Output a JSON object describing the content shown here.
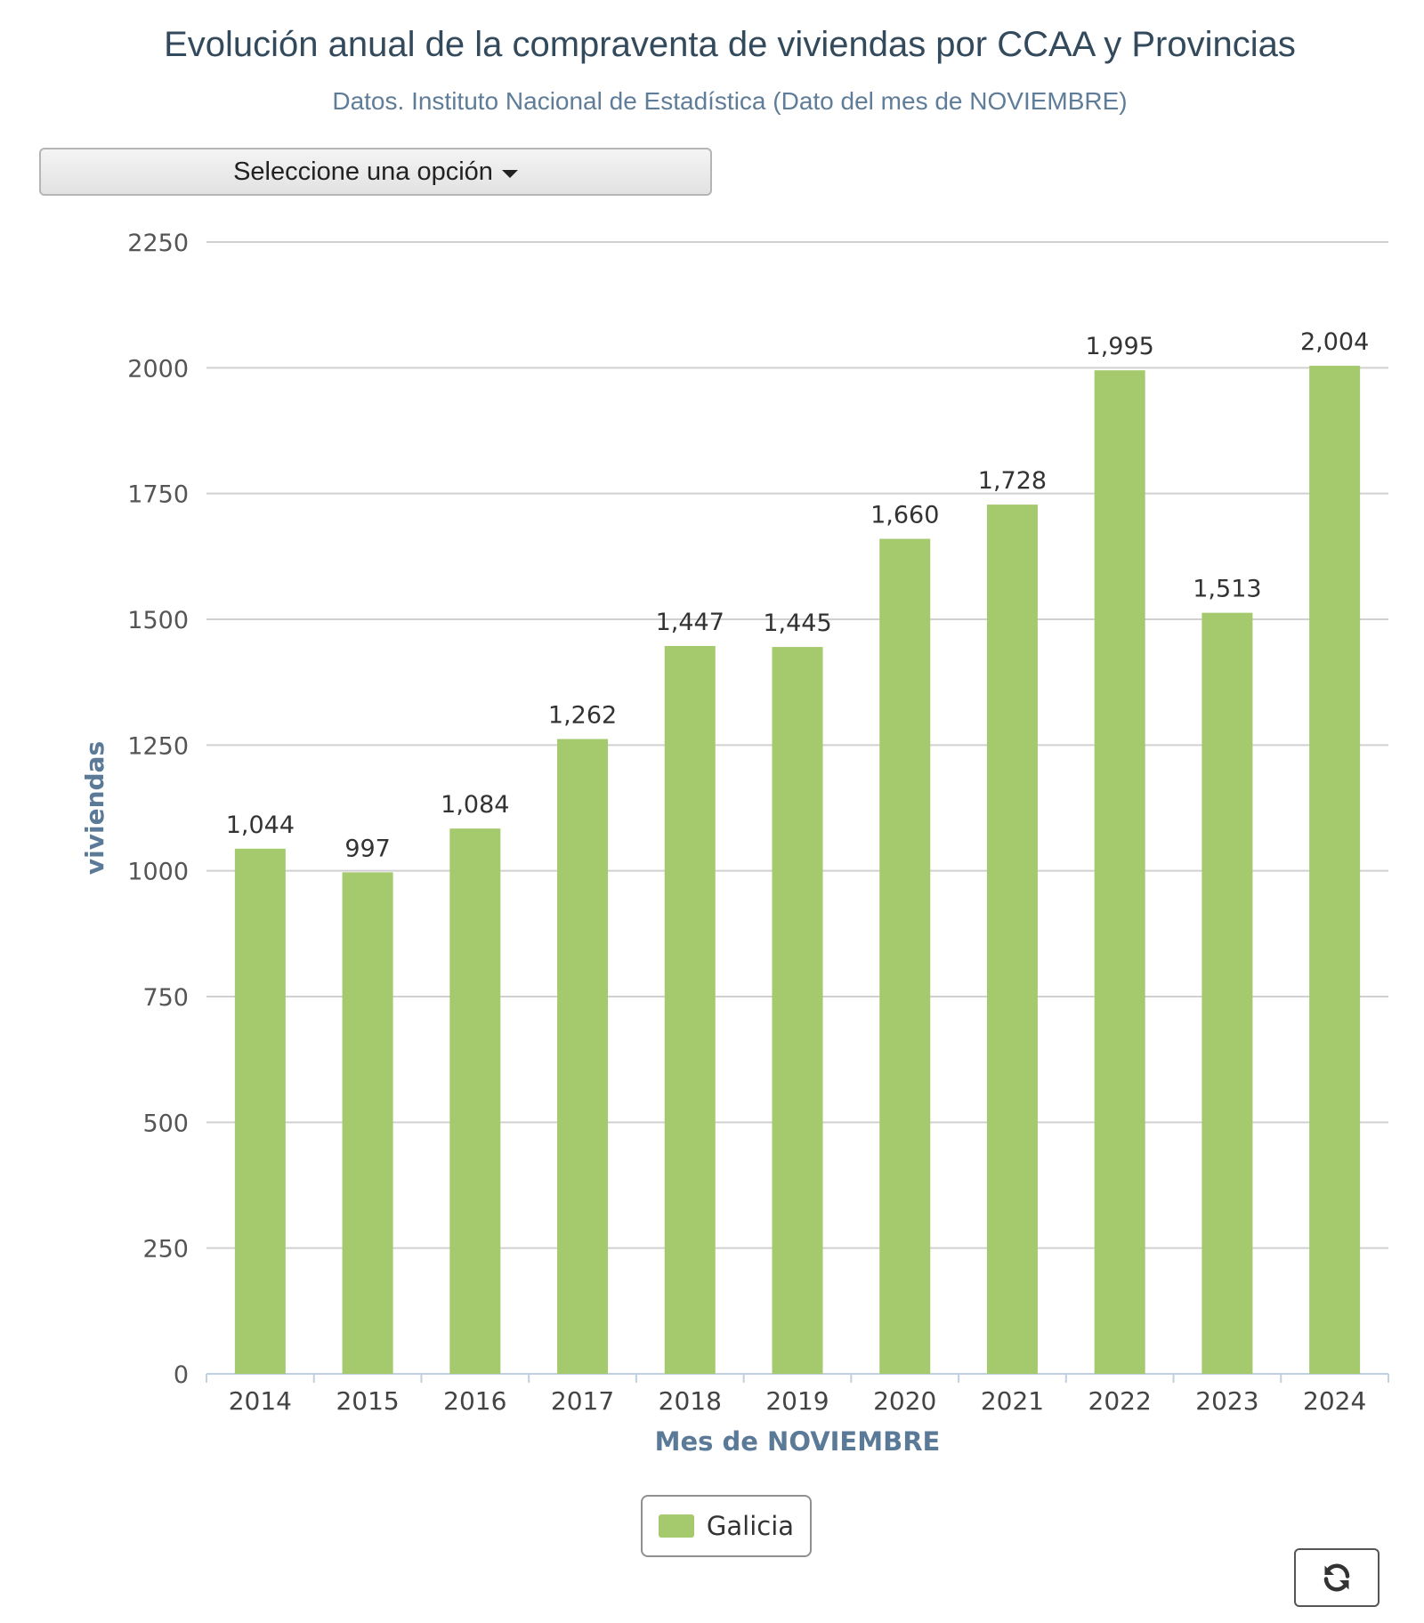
{
  "header": {
    "title": "Evolución anual de la compraventa de viviendas por CCAA y Provincias",
    "subtitle": "Datos. Instituto Nacional de Estadística (Dato del mes de NOVIEMBRE)"
  },
  "selector": {
    "label": "Seleccione una opción"
  },
  "legend": {
    "label": "Galicia"
  },
  "colors": {
    "bar": "#a5c96d",
    "axis_title": "#5b7a97",
    "grid": "#d0d0d0",
    "text": "#333333"
  },
  "refresh": {
    "icon": "refresh-icon"
  },
  "chart_data": {
    "type": "bar",
    "title": "Evolución anual de la compraventa de viviendas por CCAA y Provincias",
    "subtitle": "Datos. Instituto Nacional de Estadística (Dato del mes de NOVIEMBRE)",
    "xlabel": "Mes de NOVIEMBRE",
    "ylabel": "viviendas",
    "categories": [
      "2014",
      "2015",
      "2016",
      "2017",
      "2018",
      "2019",
      "2020",
      "2021",
      "2022",
      "2023",
      "2024"
    ],
    "series": [
      {
        "name": "Galicia",
        "values": [
          1044,
          997,
          1084,
          1262,
          1447,
          1445,
          1660,
          1728,
          1995,
          1513,
          2004
        ],
        "labels": [
          "1,044",
          "997",
          "1,084",
          "1,262",
          "1,447",
          "1,445",
          "1,660",
          "1,728",
          "1,995",
          "1,513",
          "2,004"
        ]
      }
    ],
    "ylim": [
      0,
      2250
    ],
    "yticks": [
      "0",
      "250",
      "500",
      "750",
      "1000",
      "1250",
      "1500",
      "1750",
      "2000",
      "2250"
    ],
    "grid": true,
    "legend_position": "bottom-center"
  }
}
